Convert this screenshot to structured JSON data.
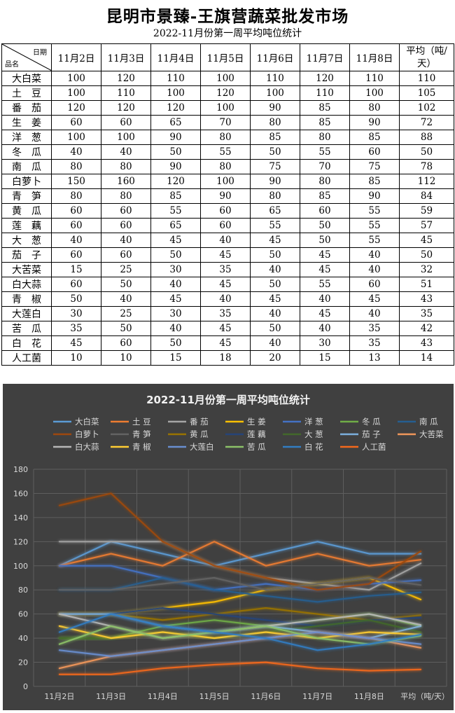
{
  "title": "昆明市景臻-王旗营蔬菜批发市场",
  "subtitle": "2022-11月份第一周平均吨位统计",
  "table": {
    "corner_top": "日期",
    "corner_bottom": "品名",
    "columns": [
      "11月2日",
      "11月3日",
      "11月4日",
      "11月5日",
      "11月6日",
      "11月7日",
      "11月8日"
    ],
    "avg_header": "平均（吨/天）",
    "rows": [
      {
        "name": "大白菜",
        "values": [
          100,
          120,
          110,
          100,
          110,
          120,
          110
        ],
        "avg": 110
      },
      {
        "name": "土　豆",
        "values": [
          100,
          110,
          100,
          120,
          100,
          110,
          100
        ],
        "avg": 105
      },
      {
        "name": "番　茄",
        "values": [
          120,
          120,
          120,
          100,
          90,
          85,
          80
        ],
        "avg": 102
      },
      {
        "name": "生　姜",
        "values": [
          60,
          60,
          65,
          70,
          80,
          85,
          90
        ],
        "avg": 72
      },
      {
        "name": "洋　葱",
        "values": [
          100,
          100,
          90,
          80,
          85,
          80,
          85
        ],
        "avg": 88
      },
      {
        "name": "冬　瓜",
        "values": [
          40,
          40,
          50,
          55,
          50,
          55,
          60
        ],
        "avg": 50
      },
      {
        "name": "南　瓜",
        "values": [
          80,
          80,
          90,
          80,
          75,
          70,
          75
        ],
        "avg": 78
      },
      {
        "name": "白萝卜",
        "values": [
          150,
          160,
          120,
          100,
          90,
          80,
          85
        ],
        "avg": 112
      },
      {
        "name": "青　笋",
        "values": [
          80,
          80,
          85,
          90,
          80,
          85,
          90
        ],
        "avg": 84
      },
      {
        "name": "黄　瓜",
        "values": [
          60,
          60,
          55,
          60,
          65,
          60,
          55
        ],
        "avg": 59
      },
      {
        "name": "莲　藕",
        "values": [
          60,
          60,
          65,
          60,
          55,
          50,
          55
        ],
        "avg": 57
      },
      {
        "name": "大　葱",
        "values": [
          40,
          40,
          45,
          40,
          45,
          50,
          55
        ],
        "avg": 45
      },
      {
        "name": "茄　子",
        "values": [
          60,
          60,
          50,
          45,
          50,
          45,
          40
        ],
        "avg": 50
      },
      {
        "name": "大苦菜",
        "values": [
          15,
          25,
          30,
          35,
          40,
          45,
          40
        ],
        "avg": 32
      },
      {
        "name": "白大蒜",
        "values": [
          60,
          50,
          40,
          45,
          50,
          55,
          60
        ],
        "avg": 51
      },
      {
        "name": "青　椒",
        "values": [
          50,
          40,
          45,
          40,
          45,
          40,
          45
        ],
        "avg": 43
      },
      {
        "name": "大莲白",
        "values": [
          30,
          25,
          30,
          35,
          40,
          45,
          40
        ],
        "avg": 35
      },
      {
        "name": "苦　瓜",
        "values": [
          35,
          50,
          40,
          45,
          50,
          40,
          35
        ],
        "avg": 42
      },
      {
        "name": "白　花",
        "values": [
          45,
          60,
          50,
          45,
          40,
          30,
          35
        ],
        "avg": 43
      },
      {
        "name": "人工菌",
        "values": [
          10,
          10,
          15,
          18,
          20,
          15,
          13
        ],
        "avg": 14
      }
    ]
  },
  "chart_data": {
    "type": "line",
    "title": "2022-11月份第一周平均吨位统计",
    "categories": [
      "11月2日",
      "11月3日",
      "11月4日",
      "11月5日",
      "11月6日",
      "11月7日",
      "11月8日",
      "平均（吨/天）"
    ],
    "ylim": [
      0,
      180
    ],
    "yticks": [
      0,
      20,
      40,
      60,
      80,
      100,
      120,
      140,
      160,
      180
    ],
    "grid": true,
    "legend": "top",
    "background": "#404040",
    "series": [
      {
        "name": "大白菜",
        "color": "#5b9bd5",
        "values": [
          100,
          120,
          110,
          100,
          110,
          120,
          110,
          110
        ]
      },
      {
        "name": "土 豆",
        "color": "#ed7d31",
        "values": [
          100,
          110,
          100,
          120,
          100,
          110,
          100,
          105
        ]
      },
      {
        "name": "番 茄",
        "color": "#a5a5a5",
        "values": [
          120,
          120,
          120,
          100,
          90,
          85,
          80,
          102
        ]
      },
      {
        "name": "生 姜",
        "color": "#ffc000",
        "values": [
          60,
          60,
          65,
          70,
          80,
          85,
          90,
          72
        ]
      },
      {
        "name": "洋 葱",
        "color": "#4472c4",
        "values": [
          100,
          100,
          90,
          80,
          85,
          80,
          85,
          88
        ]
      },
      {
        "name": "冬 瓜",
        "color": "#70ad47",
        "values": [
          40,
          40,
          50,
          55,
          50,
          55,
          60,
          50
        ]
      },
      {
        "name": "南 瓜",
        "color": "#255e91",
        "values": [
          80,
          80,
          90,
          80,
          75,
          70,
          75,
          78
        ]
      },
      {
        "name": "白萝卜",
        "color": "#9e480e",
        "values": [
          150,
          160,
          120,
          100,
          90,
          80,
          85,
          112
        ]
      },
      {
        "name": "青 笋",
        "color": "#636363",
        "values": [
          80,
          80,
          85,
          90,
          80,
          85,
          90,
          84
        ]
      },
      {
        "name": "黄 瓜",
        "color": "#997300",
        "values": [
          60,
          60,
          55,
          60,
          65,
          60,
          55,
          59
        ]
      },
      {
        "name": "莲 藕",
        "color": "#264478",
        "values": [
          60,
          60,
          65,
          60,
          55,
          50,
          55,
          57
        ]
      },
      {
        "name": "大 葱",
        "color": "#43682b",
        "values": [
          40,
          40,
          45,
          40,
          45,
          50,
          55,
          45
        ]
      },
      {
        "name": "茄 子",
        "color": "#7cafdd",
        "values": [
          60,
          60,
          50,
          45,
          50,
          45,
          40,
          50
        ]
      },
      {
        "name": "大苦菜",
        "color": "#f1975a",
        "values": [
          15,
          25,
          30,
          35,
          40,
          45,
          40,
          32
        ]
      },
      {
        "name": "白大蒜",
        "color": "#b7b7b7",
        "values": [
          60,
          50,
          40,
          45,
          50,
          55,
          60,
          51
        ]
      },
      {
        "name": "青 椒",
        "color": "#ffcd33",
        "values": [
          50,
          40,
          45,
          40,
          45,
          40,
          45,
          43
        ]
      },
      {
        "name": "大莲白",
        "color": "#698ed0",
        "values": [
          30,
          25,
          30,
          35,
          40,
          45,
          40,
          35
        ]
      },
      {
        "name": "苦 瓜",
        "color": "#8cc168",
        "values": [
          35,
          50,
          40,
          45,
          50,
          40,
          35,
          42
        ]
      },
      {
        "name": "白 花",
        "color": "#327dc2",
        "values": [
          45,
          60,
          50,
          45,
          40,
          30,
          35,
          43
        ]
      },
      {
        "name": "人工菌",
        "color": "#f4691c",
        "values": [
          10,
          10,
          15,
          18,
          20,
          15,
          13,
          14
        ]
      }
    ]
  }
}
